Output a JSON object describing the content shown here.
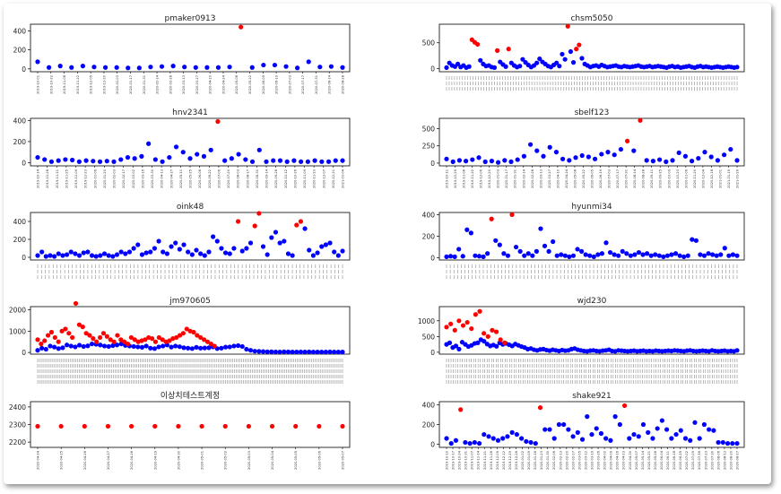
{
  "chart_data": [
    {
      "type": "scatter",
      "title": "pmaker0913",
      "yticks": [
        0,
        200,
        400
      ],
      "ylim": [
        -30,
        470
      ],
      "xticks": [
        "2019-10-01",
        "2019-10-22",
        "2019-11-08",
        "2019-11-22",
        "2019-12-05",
        "2019-12-20",
        "2020-01-03",
        "2020-01-17",
        "2020-01-31",
        "2020-02-14",
        "2020-02-28",
        "2020-03-13",
        "2020-03-27",
        "2020-04-10",
        "2020-04-24",
        "2020-05-08",
        "2020-05-22",
        "2020-06-05",
        "2020-06-19",
        "2020-07-03",
        "2020-07-17",
        "2020-07-31",
        "2020-08-14",
        "2020-08-28"
      ],
      "values": [
        75,
        15,
        30,
        15,
        30,
        20,
        15,
        15,
        10,
        10,
        20,
        25,
        30,
        20,
        15,
        15,
        15,
        20,
        440,
        15,
        40,
        40,
        25,
        10,
        75,
        20,
        25,
        15
      ],
      "anomalies": [
        18
      ],
      "colors": {
        "normal": "#0000ff",
        "anomaly": "#ff0000"
      }
    },
    {
      "type": "scatter",
      "title": "chsm5050",
      "yticks": [
        0,
        500
      ],
      "ylim": [
        -60,
        860
      ],
      "dense_xticks": 110,
      "values": [
        20,
        110,
        60,
        40,
        90,
        30,
        60,
        20,
        40,
        560,
        510,
        470,
        160,
        90,
        50,
        60,
        30,
        20,
        350,
        130,
        80,
        40,
        380,
        110,
        60,
        30,
        50,
        180,
        120,
        70,
        30,
        60,
        110,
        190,
        130,
        90,
        50,
        30,
        70,
        110,
        50,
        280,
        180,
        820,
        330,
        120,
        380,
        460,
        200,
        90,
        60,
        30,
        50,
        60,
        40,
        70,
        50,
        30,
        40,
        50,
        60,
        40,
        30,
        50,
        40,
        30,
        40,
        50,
        60,
        40,
        30,
        40,
        50,
        30,
        40,
        50,
        40,
        30,
        20,
        40,
        50,
        30,
        40,
        20,
        30,
        40,
        50,
        30,
        20,
        40,
        50,
        30,
        40,
        30,
        20,
        30,
        40,
        30,
        20,
        30,
        40,
        30,
        20,
        30
      ],
      "anomalies": [
        9,
        10,
        11,
        18,
        22,
        43,
        46,
        47
      ],
      "colors": {
        "normal": "#0000ff",
        "anomaly": "#ff0000"
      }
    },
    {
      "type": "scatter",
      "title": "hnv2341",
      "yticks": [
        0,
        200,
        400
      ],
      "ylim": [
        -30,
        420
      ],
      "xticks": [
        "2019-10-14",
        "2019-10-28",
        "2019-11-11",
        "2019-11-25",
        "2019-12-09",
        "2019-12-23",
        "2020-01-06",
        "2020-01-20",
        "2020-02-03",
        "2020-02-17",
        "2020-03-02",
        "2020-03-16",
        "2020-03-30",
        "2020-04-13",
        "2020-04-27",
        "2020-05-11",
        "2020-05-25",
        "2020-06-08",
        "2020-06-22",
        "2020-07-06",
        "2020-07-20",
        "2020-08-03",
        "2020-08-17",
        "2020-08-31",
        "2020-09-14",
        "2020-09-28",
        "2020-10-12",
        "2020-10-26",
        "2020-11-09",
        "2020-11-23",
        "2020-12-07",
        "2020-12-21",
        "2021-01-04"
      ],
      "values": [
        50,
        30,
        10,
        20,
        30,
        25,
        10,
        20,
        15,
        10,
        15,
        10,
        30,
        50,
        40,
        60,
        180,
        30,
        10,
        50,
        150,
        100,
        40,
        80,
        60,
        120,
        390,
        20,
        40,
        80,
        30,
        10,
        120,
        10,
        20,
        20,
        10,
        20,
        10,
        10,
        20,
        10,
        10,
        20,
        20
      ],
      "anomalies": [
        26
      ],
      "colors": {
        "normal": "#0000ff",
        "anomaly": "#ff0000"
      }
    },
    {
      "type": "scatter",
      "title": "sbelf123",
      "yticks": [
        0,
        250,
        500
      ],
      "ylim": [
        -40,
        650
      ],
      "xticks": [
        "2019-10-11",
        "2019-10-25",
        "2019-11-08",
        "2019-11-22",
        "2019-12-06",
        "2019-12-20",
        "2020-01-03",
        "2020-01-17",
        "2020-01-31",
        "2020-02-14",
        "2020-02-28",
        "2020-03-13",
        "2020-03-27",
        "2020-04-10",
        "2020-04-24",
        "2020-05-08",
        "2020-05-22",
        "2020-06-05",
        "2020-06-19",
        "2020-07-03",
        "2020-07-17",
        "2020-07-31",
        "2020-08-14",
        "2020-08-28",
        "2020-09-11",
        "2020-09-25",
        "2020-10-09",
        "2020-10-23",
        "2020-11-06",
        "2020-11-20",
        "2020-12-04",
        "2020-12-18",
        "2021-01-01",
        "2021-01-15",
        "2021-01-29"
      ],
      "values": [
        60,
        20,
        40,
        30,
        50,
        80,
        20,
        30,
        10,
        40,
        20,
        50,
        100,
        270,
        180,
        100,
        230,
        160,
        60,
        40,
        80,
        110,
        90,
        60,
        130,
        160,
        120,
        200,
        320,
        180,
        620,
        40,
        30,
        50,
        20,
        40,
        150,
        100,
        30,
        70,
        160,
        90,
        40,
        120,
        200,
        40
      ],
      "anomalies": [
        28,
        30
      ],
      "colors": {
        "normal": "#0000ff",
        "anomaly": "#ff0000"
      }
    },
    {
      "type": "scatter",
      "title": "oink48",
      "yticks": [
        0,
        200,
        400
      ],
      "ylim": [
        -30,
        500
      ],
      "dense_xticks": 80,
      "values": [
        20,
        60,
        10,
        20,
        10,
        40,
        20,
        30,
        60,
        40,
        20,
        50,
        60,
        20,
        10,
        20,
        40,
        20,
        10,
        30,
        60,
        40,
        60,
        100,
        140,
        30,
        50,
        60,
        100,
        180,
        60,
        40,
        120,
        160,
        90,
        140,
        60,
        30,
        80,
        40,
        20,
        60,
        230,
        180,
        100,
        50,
        40,
        100,
        400,
        70,
        100,
        160,
        350,
        490,
        120,
        30,
        220,
        280,
        160,
        180,
        40,
        20,
        360,
        400,
        320,
        80,
        20,
        50,
        120,
        140,
        160,
        60,
        20,
        70
      ],
      "anomalies": [
        48,
        52,
        53,
        62,
        63
      ],
      "colors": {
        "normal": "#0000ff",
        "anomaly": "#ff0000"
      }
    },
    {
      "type": "scatter",
      "title": "hyunmi34",
      "yticks": [
        0,
        200,
        400
      ],
      "ylim": [
        -20,
        420
      ],
      "dense_xticks": 80,
      "values": [
        10,
        15,
        10,
        80,
        15,
        260,
        230,
        20,
        15,
        10,
        40,
        360,
        160,
        120,
        40,
        20,
        400,
        100,
        60,
        20,
        40,
        20,
        60,
        270,
        110,
        60,
        150,
        20,
        30,
        20,
        10,
        20,
        80,
        60,
        30,
        20,
        10,
        30,
        40,
        140,
        50,
        30,
        20,
        60,
        40,
        20,
        30,
        50,
        30,
        40,
        20,
        30,
        20,
        10,
        20,
        30,
        40,
        20,
        10,
        20,
        170,
        160,
        30,
        20,
        40,
        30,
        20,
        30,
        90,
        20,
        30,
        20
      ],
      "anomalies": [
        11,
        16
      ],
      "colors": {
        "normal": "#0000ff",
        "anomaly": "#ff0000"
      }
    },
    {
      "type": "scatter",
      "title": "jm970605",
      "yticks": [
        0,
        1000,
        2000
      ],
      "ylim": [
        -80,
        2150
      ],
      "dense_xticks": 170,
      "normal_sample": [
        100,
        200,
        150,
        300,
        250,
        180,
        220,
        350,
        300,
        260,
        340,
        280,
        310,
        400,
        380,
        350,
        300,
        280,
        320,
        350,
        400,
        330,
        300,
        280,
        260,
        240,
        300,
        200,
        180,
        260,
        300,
        350,
        250,
        300,
        270,
        220,
        200,
        180,
        240,
        200,
        210,
        220,
        260,
        180,
        200,
        250,
        260,
        300,
        320,
        280,
        150,
        100,
        60,
        50,
        40,
        30,
        30,
        25,
        20,
        30,
        25,
        20,
        20,
        25,
        20,
        25,
        20,
        20,
        20,
        20,
        25,
        20,
        20,
        20
      ],
      "anomaly_sample": [
        600,
        400,
        550,
        800,
        950,
        700,
        500,
        1000,
        1100,
        900,
        700,
        2300,
        1300,
        1200,
        900,
        800,
        650,
        500,
        700,
        900,
        750,
        600,
        500,
        800,
        600,
        500,
        400,
        700,
        600,
        500,
        550,
        600,
        700,
        650,
        500,
        700,
        600,
        500,
        550,
        650,
        700,
        800,
        900,
        1100,
        1000,
        950,
        800,
        700,
        600,
        500,
        400,
        300
      ],
      "colors": {
        "normal": "#0000ff",
        "anomaly": "#ff0000"
      }
    },
    {
      "type": "scatter",
      "title": "wjd230",
      "yticks": [
        0,
        500,
        1000
      ],
      "ylim": [
        -60,
        1450
      ],
      "dense_xticks": 130,
      "normal_sample": [
        250,
        300,
        150,
        200,
        100,
        320,
        250,
        180,
        220,
        280,
        300,
        400,
        350,
        260,
        200,
        230,
        190,
        300,
        250,
        280,
        240,
        200,
        260,
        220,
        180,
        150,
        100,
        120,
        80,
        60,
        90,
        100,
        70,
        50,
        80,
        60,
        40,
        70,
        50,
        60,
        100,
        120,
        80,
        60,
        40,
        30,
        50,
        60,
        40,
        30,
        50,
        60,
        80,
        40,
        30,
        60,
        50,
        40,
        30,
        40,
        50,
        30,
        40,
        50,
        30,
        40,
        30,
        50,
        40,
        30,
        40,
        50,
        40,
        60,
        50,
        40,
        30,
        50,
        60,
        40,
        30,
        40,
        50,
        40,
        30,
        60,
        40,
        30,
        40,
        50,
        30,
        40,
        30,
        60
      ],
      "anomaly_sample": [
        800,
        900,
        700,
        1000,
        850,
        950,
        750,
        1200,
        1300,
        600,
        500,
        700,
        650,
        400,
        300
      ],
      "colors": {
        "normal": "#0000ff",
        "anomaly": "#ff0000"
      }
    },
    {
      "type": "scatter",
      "title": "이상치테스트계정",
      "yticks": [
        2200,
        2300,
        2400
      ],
      "ylim": [
        2170,
        2430
      ],
      "xticks": [
        "2020-04-24",
        "2020-04-25",
        "2020-04-26",
        "2020-04-27",
        "2020-04-28",
        "2020-04-29",
        "2020-04-30",
        "2020-05-01",
        "2020-05-02",
        "2020-05-03",
        "2020-05-04",
        "2020-05-05",
        "2020-05-06",
        "2020-05-07"
      ],
      "values": [
        2290,
        2290,
        2290,
        2290,
        2290,
        2290,
        2290,
        2290,
        2290,
        2290,
        2290,
        2290,
        2290,
        2290
      ],
      "anomalies": [
        0,
        1,
        2,
        3,
        4,
        5,
        6,
        7,
        8,
        9,
        10,
        11,
        12,
        13
      ],
      "colors": {
        "normal": "#0000ff",
        "anomaly": "#ff0000"
      }
    },
    {
      "type": "scatter",
      "title": "shake921",
      "yticks": [
        0,
        200,
        400
      ],
      "ylim": [
        -30,
        430
      ],
      "xticks": [
        "2019-10-10",
        "2019-10-17",
        "2019-10-24",
        "2019-10-31",
        "2019-11-07",
        "2019-11-14",
        "2019-11-21",
        "2019-11-28",
        "2019-12-05",
        "2019-12-12",
        "2019-12-19",
        "2019-12-26",
        "2020-01-02",
        "2020-01-09",
        "2020-01-16",
        "2020-01-23",
        "2020-01-30",
        "2020-02-06",
        "2020-02-13",
        "2020-02-20",
        "2020-02-27",
        "2020-03-05",
        "2020-03-12",
        "2020-03-19",
        "2020-03-26",
        "2020-04-02",
        "2020-04-09",
        "2020-04-16",
        "2020-04-23",
        "2020-04-30",
        "2020-05-07",
        "2020-05-14",
        "2020-05-21",
        "2020-05-28",
        "2020-06-04",
        "2020-06-11",
        "2020-06-18",
        "2020-06-25",
        "2020-07-02",
        "2020-07-09",
        "2020-07-16",
        "2020-07-23",
        "2020-07-30",
        "2020-08-06",
        "2020-08-13",
        "2020-08-20",
        "2020-08-27"
      ],
      "values": [
        60,
        10,
        40,
        350,
        20,
        10,
        20,
        10,
        100,
        80,
        60,
        40,
        60,
        80,
        120,
        100,
        60,
        30,
        20,
        10,
        370,
        150,
        150,
        60,
        200,
        200,
        150,
        80,
        120,
        50,
        280,
        100,
        160,
        110,
        60,
        40,
        280,
        200,
        390,
        60,
        100,
        80,
        200,
        120,
        60,
        160,
        240,
        150,
        60,
        100,
        140,
        60,
        40,
        220,
        60,
        200,
        150,
        140,
        20,
        20,
        10,
        10,
        10
      ],
      "anomalies": [
        3,
        20,
        38
      ],
      "colors": {
        "normal": "#0000ff",
        "anomaly": "#ff0000"
      }
    }
  ]
}
